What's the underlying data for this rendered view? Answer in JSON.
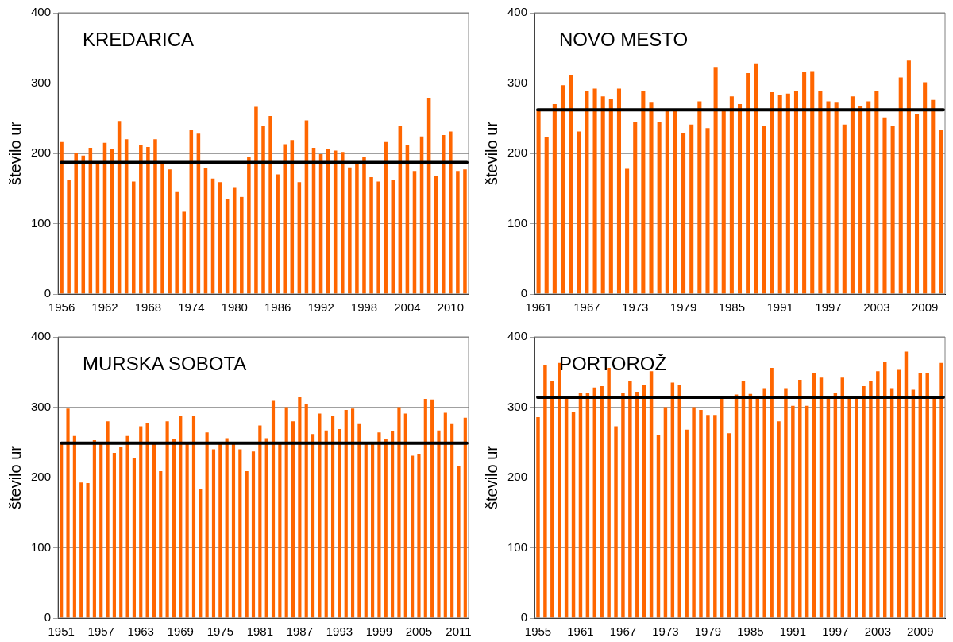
{
  "chart_data": [
    {
      "type": "bar",
      "title": "KREDARICA",
      "ylabel": "število ur",
      "categories": [
        "1956",
        null,
        null,
        null,
        null,
        null,
        "1962",
        null,
        null,
        null,
        null,
        null,
        "1968",
        null,
        null,
        null,
        null,
        null,
        "1974",
        null,
        null,
        null,
        null,
        null,
        "1980",
        null,
        null,
        null,
        null,
        null,
        "1986",
        null,
        null,
        null,
        null,
        null,
        "1992",
        null,
        null,
        null,
        null,
        null,
        "1998",
        null,
        null,
        null,
        null,
        null,
        "2004",
        null,
        null,
        null,
        null,
        null,
        "2010",
        null,
        null
      ],
      "series": [
        {
          "color": "#ff6600",
          "values": [
            216,
            162,
            200,
            197,
            208,
            187,
            215,
            206,
            246,
            220,
            160,
            212,
            209,
            220,
            186,
            177,
            145,
            117,
            233,
            228,
            179,
            164,
            159,
            135,
            152,
            138,
            195,
            266,
            239,
            253,
            170,
            213,
            219,
            159,
            247,
            208,
            199,
            206,
            204,
            202,
            180,
            186,
            195,
            166,
            160,
            216,
            162,
            239,
            212,
            175,
            224,
            279,
            168,
            226,
            231,
            175,
            177
          ]
        }
      ],
      "ylim": [
        0,
        400
      ],
      "yticks": [
        0,
        100,
        200,
        300,
        400
      ],
      "grid": "y",
      "ref_lines": [
        {
          "axis": "y",
          "value": 187,
          "color": "#000000"
        }
      ]
    },
    {
      "type": "bar",
      "title": "NOVO MESTO",
      "ylabel": "število ur",
      "categories": [
        "1961",
        null,
        null,
        null,
        null,
        null,
        "1967",
        null,
        null,
        null,
        null,
        null,
        "1973",
        null,
        null,
        null,
        null,
        null,
        "1979",
        null,
        null,
        null,
        null,
        null,
        "1985",
        null,
        null,
        null,
        null,
        null,
        "1991",
        null,
        null,
        null,
        null,
        null,
        "1997",
        null,
        null,
        null,
        null,
        null,
        "2003",
        null,
        null,
        null,
        null,
        null,
        "2009",
        null,
        null
      ],
      "series": [
        {
          "color": "#ff6600",
          "values": [
            262,
            223,
            270,
            297,
            312,
            231,
            288,
            292,
            281,
            277,
            292,
            178,
            245,
            288,
            272,
            245,
            262,
            262,
            229,
            241,
            274,
            236,
            323,
            262,
            281,
            270,
            314,
            328,
            239,
            287,
            283,
            285,
            288,
            316,
            317,
            288,
            274,
            272,
            241,
            281,
            267,
            274,
            288,
            251,
            239,
            308,
            332,
            256,
            301,
            276,
            233
          ]
        }
      ],
      "ylim": [
        0,
        400
      ],
      "yticks": [
        0,
        100,
        200,
        300,
        400
      ],
      "grid": "y",
      "ref_lines": [
        {
          "axis": "y",
          "value": 262,
          "color": "#000000"
        }
      ]
    },
    {
      "type": "bar",
      "title": "MURSKA SOBOTA",
      "ylabel": "število ur",
      "categories": [
        "1951",
        null,
        null,
        null,
        null,
        null,
        "1957",
        null,
        null,
        null,
        null,
        null,
        "1963",
        null,
        null,
        null,
        null,
        null,
        "1969",
        null,
        null,
        null,
        null,
        null,
        "1975",
        null,
        null,
        null,
        null,
        null,
        "1981",
        null,
        null,
        null,
        null,
        null,
        "1987",
        null,
        null,
        null,
        null,
        null,
        "1993",
        null,
        null,
        null,
        null,
        null,
        "1999",
        null,
        null,
        null,
        null,
        null,
        "2005",
        null,
        null,
        null,
        null,
        null,
        "2011",
        null
      ],
      "series": [
        {
          "color": "#ff6600",
          "values": [
            249,
            298,
            259,
            193,
            192,
            253,
            249,
            280,
            235,
            244,
            259,
            228,
            273,
            278,
            249,
            209,
            280,
            255,
            287,
            249,
            287,
            184,
            264,
            240,
            249,
            256,
            249,
            240,
            209,
            237,
            274,
            256,
            309,
            249,
            300,
            280,
            314,
            305,
            262,
            291,
            267,
            287,
            269,
            296,
            298,
            276,
            249,
            249,
            264,
            255,
            266,
            300,
            291,
            231,
            233,
            312,
            311,
            267,
            292,
            276,
            216,
            285
          ]
        }
      ],
      "ylim": [
        0,
        400
      ],
      "yticks": [
        0,
        100,
        200,
        300,
        400
      ],
      "grid": "y",
      "ref_lines": [
        {
          "axis": "y",
          "value": 249,
          "color": "#000000"
        }
      ]
    },
    {
      "type": "bar",
      "title": "PORTOROŽ",
      "ylabel": "število ur",
      "categories": [
        "1955",
        null,
        null,
        null,
        null,
        null,
        "1961",
        null,
        null,
        null,
        null,
        null,
        "1967",
        null,
        null,
        null,
        null,
        null,
        "1973",
        null,
        null,
        null,
        null,
        null,
        "1979",
        null,
        null,
        null,
        null,
        null,
        "1985",
        null,
        null,
        null,
        null,
        null,
        "1991",
        null,
        null,
        null,
        null,
        null,
        "1997",
        null,
        null,
        null,
        null,
        null,
        "2003",
        null,
        null,
        null,
        null,
        null,
        "2009",
        null,
        null,
        null
      ],
      "series": [
        {
          "color": "#ff6600",
          "values": [
            286,
            360,
            337,
            363,
            314,
            293,
            320,
            320,
            328,
            330,
            356,
            273,
            320,
            337,
            322,
            332,
            351,
            261,
            300,
            335,
            332,
            268,
            300,
            296,
            289,
            289,
            314,
            263,
            318,
            337,
            319,
            314,
            327,
            356,
            280,
            327,
            302,
            339,
            302,
            348,
            342,
            314,
            320,
            342,
            314,
            314,
            330,
            337,
            351,
            365,
            327,
            353,
            379,
            325,
            348,
            349,
            314,
            363
          ]
        }
      ],
      "ylim": [
        0,
        400
      ],
      "yticks": [
        0,
        100,
        200,
        300,
        400
      ],
      "grid": "y",
      "ref_lines": [
        {
          "axis": "y",
          "value": 314,
          "color": "#000000"
        }
      ]
    }
  ]
}
